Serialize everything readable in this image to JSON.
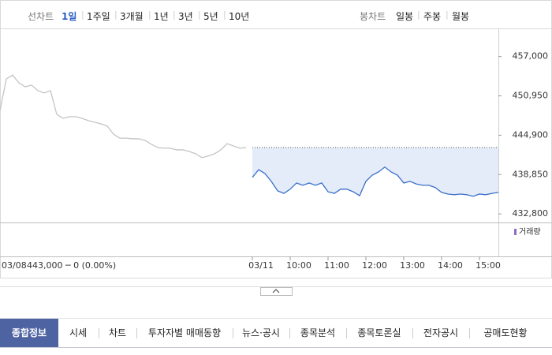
{
  "tabs": {
    "label": "선차트",
    "items": [
      "1일",
      "1주일",
      "3개월",
      "1년",
      "3년",
      "5년",
      "10년"
    ],
    "selected": 0
  },
  "candle_tabs": {
    "label": "봉차트",
    "items": [
      "일봉",
      "주봉",
      "월봉"
    ]
  },
  "chart_data": {
    "type": "line",
    "categories": [
      "03/08",
      null,
      null,
      null,
      null,
      null,
      null,
      null,
      null,
      null,
      null,
      null,
      null,
      null,
      null,
      null,
      null,
      null,
      null,
      null,
      null,
      null,
      null,
      null,
      null,
      null,
      null,
      null,
      null,
      null,
      null,
      null,
      null,
      null,
      null,
      null,
      null,
      null,
      null,
      null,
      "03/11",
      null,
      null,
      null,
      null,
      null,
      "10:00",
      null,
      null,
      null,
      null,
      null,
      "11:00",
      null,
      null,
      null,
      null,
      null,
      "12:00",
      null,
      null,
      null,
      null,
      null,
      "13:00",
      null,
      null,
      null,
      null,
      null,
      "14:00",
      null,
      null,
      null,
      null,
      null,
      "15:00",
      null,
      null,
      null
    ],
    "series": [
      {
        "color": "#c4c4c4",
        "values": [
          448700,
          453550,
          454150,
          452950,
          452350,
          452600,
          451750,
          451400,
          451750,
          448100,
          447500,
          447750,
          447750,
          447500,
          447150,
          446900,
          446650,
          446300,
          445050,
          444450,
          444450,
          444350,
          444350,
          444100,
          443500,
          443000,
          442900,
          442900,
          442650,
          442650,
          442400,
          442050,
          441450,
          441700,
          442050,
          442650,
          443600,
          443250,
          442900,
          443000,
          null,
          null,
          null,
          null,
          null,
          null,
          null,
          null,
          null,
          null,
          null,
          null,
          null,
          null,
          null,
          null,
          null,
          null,
          null,
          null,
          null,
          null,
          null,
          null,
          null,
          null,
          null,
          null,
          null,
          null,
          null,
          null,
          null,
          null,
          null,
          null,
          null,
          null,
          null,
          null
        ]
      },
      {
        "color": "#3a6fc9",
        "values": [
          null,
          null,
          null,
          null,
          null,
          null,
          null,
          null,
          null,
          null,
          null,
          null,
          null,
          null,
          null,
          null,
          null,
          null,
          null,
          null,
          null,
          null,
          null,
          null,
          null,
          null,
          null,
          null,
          null,
          null,
          null,
          null,
          null,
          null,
          null,
          null,
          null,
          null,
          null,
          null,
          438400,
          439600,
          439000,
          437800,
          436350,
          435950,
          436600,
          437550,
          437200,
          437550,
          437200,
          437550,
          436200,
          435950,
          436600,
          436600,
          436200,
          435600,
          437800,
          438750,
          439250,
          440000,
          439250,
          438750,
          437550,
          437800,
          437400,
          437200,
          437200,
          436850,
          436100,
          435850,
          435750,
          435850,
          435750,
          435500,
          435850,
          435750,
          435950,
          436100
        ]
      }
    ],
    "baseline": 443000,
    "ylim": [
      431600,
      460600
    ],
    "yticks": [
      {
        "value": 457000,
        "label": "457,000"
      },
      {
        "value": 450950,
        "label": "450,950"
      },
      {
        "value": 444900,
        "label": "444,900"
      },
      {
        "value": 438850,
        "label": "438,850"
      },
      {
        "value": 432800,
        "label": "432,800"
      }
    ]
  },
  "info": "443,000 ─ 0 (0.00%)",
  "volume_label": "거래량",
  "nav": {
    "items": [
      "종합정보",
      "시세",
      "차트",
      "투자자별 매매동향",
      "뉴스·공시",
      "종목분석",
      "종목토론실",
      "전자공시",
      "공매도현황"
    ],
    "selected": 0
  }
}
